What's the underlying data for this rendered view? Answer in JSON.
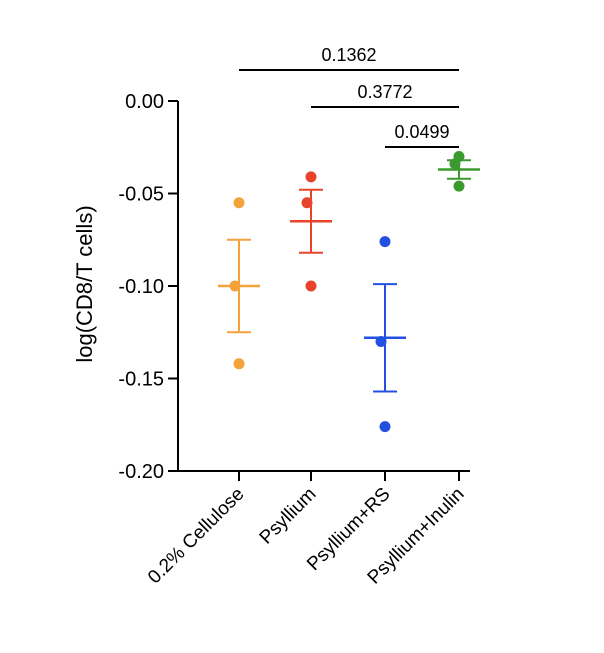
{
  "chart_data": {
    "type": "scatter",
    "ylabel": "log(CD8/T cells)",
    "xlabel": "",
    "ylim": [
      -0.2,
      0.0
    ],
    "yticks": [
      0.0,
      -0.05,
      -0.1,
      -0.15,
      -0.2
    ],
    "ytick_labels": [
      "0.00",
      "-0.05",
      "-0.10",
      "-0.15",
      "-0.20"
    ],
    "categories": [
      "0.2% Cellulose",
      "Psyllium",
      "Psyllium+RS",
      "Psyllium+Inulin"
    ],
    "groups": [
      {
        "category": "0.2% Cellulose",
        "color": "#f4a23a",
        "points": [
          -0.055,
          -0.1,
          -0.142
        ],
        "mean": -0.1,
        "sem": 0.025
      },
      {
        "category": "Psyllium",
        "color": "#e8432b",
        "points": [
          -0.041,
          -0.055,
          -0.1
        ],
        "mean": -0.065,
        "sem": 0.017
      },
      {
        "category": "Psyllium+RS",
        "color": "#2450e0",
        "points": [
          -0.076,
          -0.13,
          -0.176
        ],
        "mean": -0.128,
        "sem": 0.029
      },
      {
        "category": "Psyllium+Inulin",
        "color": "#3a9a2e",
        "points": [
          -0.03,
          -0.034,
          -0.046
        ],
        "mean": -0.037,
        "sem": 0.005
      }
    ],
    "comparisons": [
      {
        "from": "0.2% Cellulose",
        "to": "Psyllium+Inulin",
        "p": "0.1362"
      },
      {
        "from": "Psyllium",
        "to": "Psyllium+Inulin",
        "p": "0.3772"
      },
      {
        "from": "Psyllium+RS",
        "to": "Psyllium+Inulin",
        "p": "0.0499"
      }
    ]
  }
}
